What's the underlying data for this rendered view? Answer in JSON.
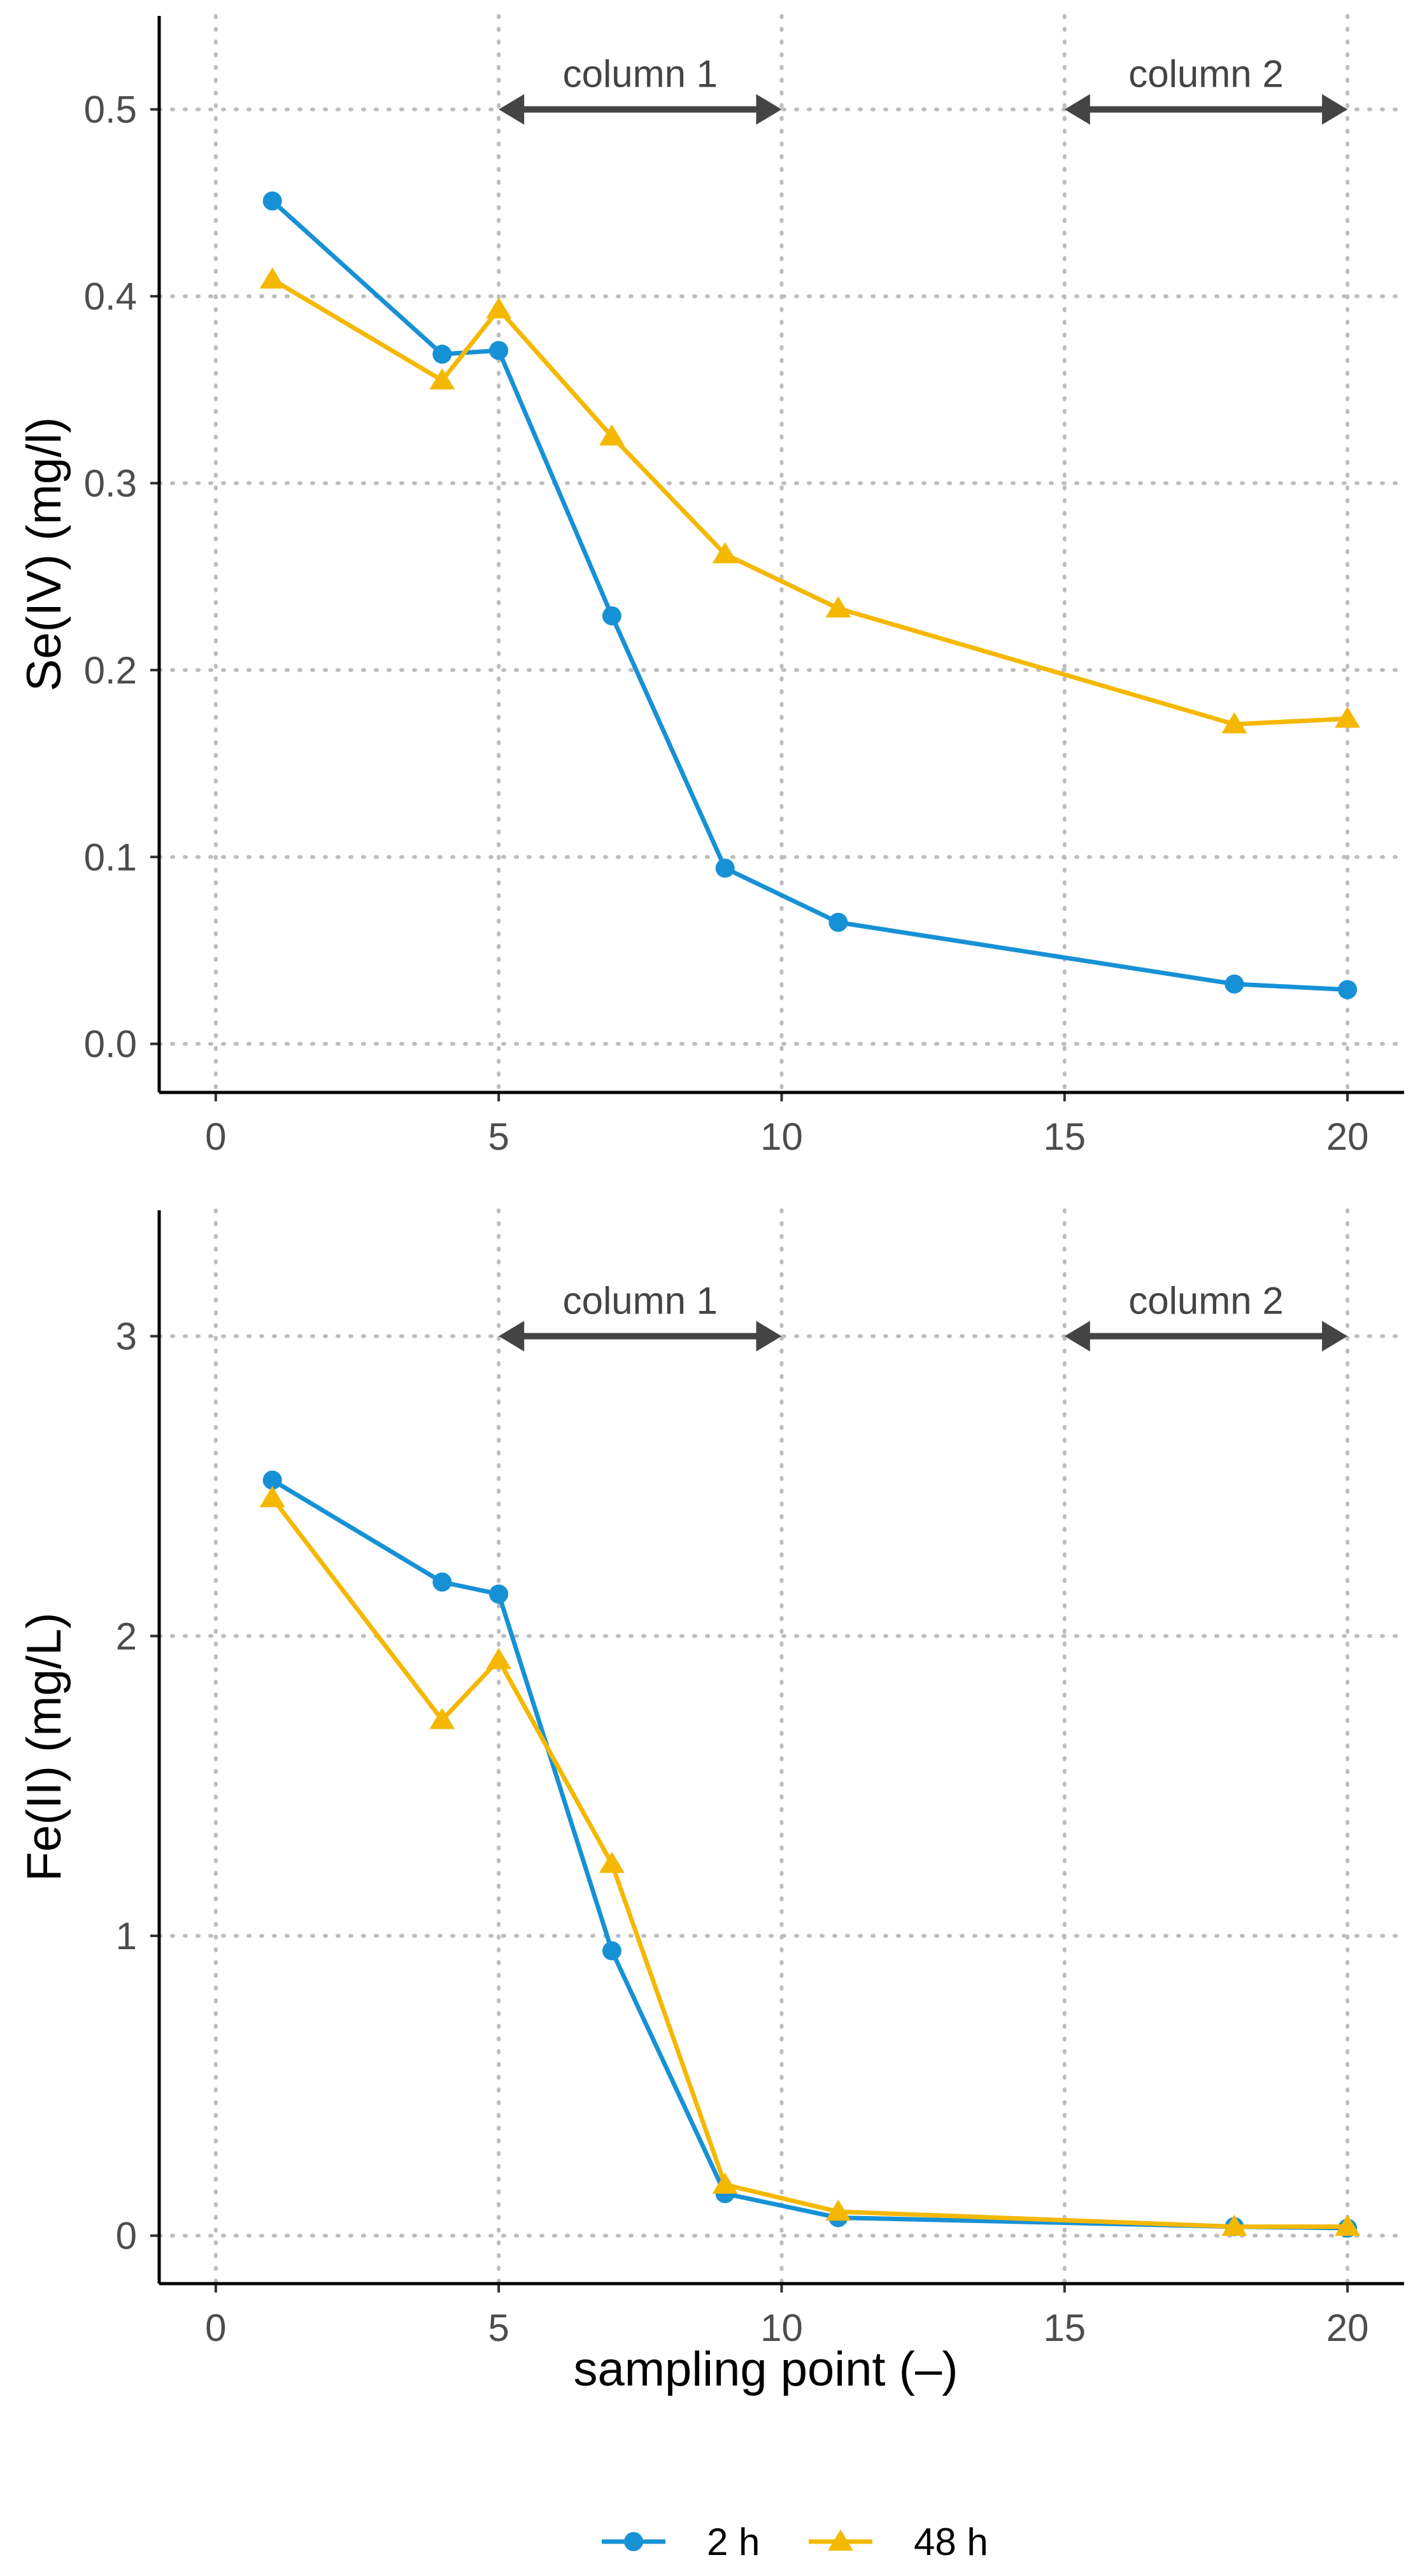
{
  "chart_data": [
    {
      "type": "line",
      "panel": "top",
      "ylabel": "Se(IV) (mg/l)",
      "xlabel": "",
      "xlim": [
        -1,
        21
      ],
      "ylim": [
        -0.026,
        0.55
      ],
      "xticks": [
        0,
        5,
        10,
        15,
        20
      ],
      "yticks": [
        0.0,
        0.1,
        0.2,
        0.3,
        0.4,
        0.5
      ],
      "ytick_labels": [
        "0.0",
        "0.1",
        "0.2",
        "0.3",
        "0.4",
        "0.5"
      ],
      "grid": "dotted",
      "annotations": [
        {
          "label": "column 1",
          "from": 5,
          "to": 10,
          "y": 0.5
        },
        {
          "label": "column 2",
          "from": 15,
          "to": 20,
          "y": 0.5
        }
      ],
      "series": [
        {
          "name": "2 h",
          "color": "#1791d6",
          "marker": "circle",
          "x": [
            1,
            4,
            5,
            7,
            9,
            11,
            18,
            20
          ],
          "values": [
            0.451,
            0.369,
            0.371,
            0.229,
            0.094,
            0.065,
            0.032,
            0.029
          ]
        },
        {
          "name": "48 h",
          "color": "#f5b800",
          "marker": "triangle",
          "x": [
            1,
            4,
            5,
            7,
            9,
            11,
            18,
            20
          ],
          "values": [
            0.409,
            0.355,
            0.393,
            0.325,
            0.262,
            0.233,
            0.171,
            0.174
          ]
        }
      ]
    },
    {
      "type": "line",
      "panel": "bottom",
      "ylabel": "Fe(II) (mg/L)",
      "xlabel": "sampling point (–)",
      "xlim": [
        -1,
        21
      ],
      "ylim": [
        -0.16,
        3.42
      ],
      "xticks": [
        0,
        5,
        10,
        15,
        20
      ],
      "yticks": [
        0,
        1,
        2,
        3
      ],
      "ytick_labels": [
        "0",
        "1",
        "2",
        "3"
      ],
      "grid": "dotted",
      "annotations": [
        {
          "label": "column 1",
          "from": 5,
          "to": 10,
          "y": 3.0
        },
        {
          "label": "column 2",
          "from": 15,
          "to": 20,
          "y": 3.0
        }
      ],
      "series": [
        {
          "name": "2 h",
          "color": "#1791d6",
          "marker": "circle",
          "x": [
            1,
            4,
            5,
            7,
            9,
            11,
            18,
            20
          ],
          "values": [
            2.52,
            2.18,
            2.14,
            0.95,
            0.14,
            0.06,
            0.03,
            0.025
          ]
        },
        {
          "name": "48 h",
          "color": "#f5b800",
          "marker": "triangle",
          "x": [
            1,
            4,
            5,
            7,
            9,
            11,
            18,
            20
          ],
          "values": [
            2.46,
            1.72,
            1.92,
            1.24,
            0.17,
            0.08,
            0.03,
            0.03
          ]
        }
      ]
    }
  ],
  "legend": {
    "position": "bottom",
    "items": [
      {
        "label": "2 h",
        "color": "#1791d6",
        "marker": "circle"
      },
      {
        "label": "48 h",
        "color": "#f5b800",
        "marker": "triangle"
      }
    ]
  }
}
